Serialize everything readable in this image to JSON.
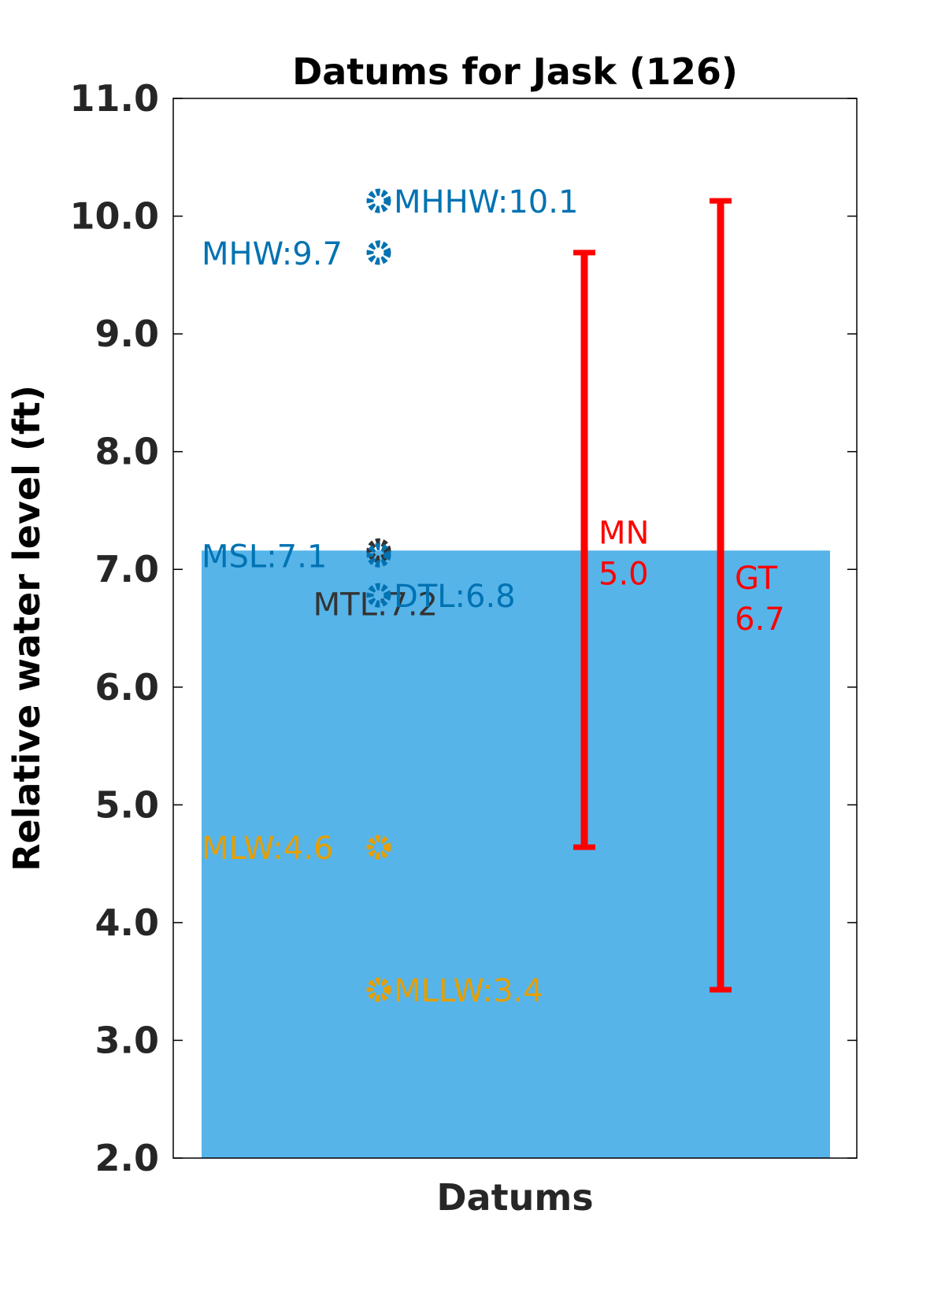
{
  "chart_data": {
    "type": "scatter",
    "title": "Datums for Jask (126)",
    "xlabel": "Datums",
    "ylabel": "Relative water level (ft)",
    "ylim": [
      2.0,
      11.0
    ],
    "yticks": [
      "2.0",
      "3.0",
      "4.0",
      "5.0",
      "6.0",
      "7.0",
      "8.0",
      "9.0",
      "10.0",
      "11.0"
    ],
    "grid": false,
    "fill_level": 7.16,
    "colors": {
      "fill": "#56b4e9",
      "high": "#0072b2",
      "mtl": "#333333",
      "low": "#e69f00",
      "range": "#ff0000",
      "axis": "#000000",
      "tick_text": "#262626"
    },
    "points": [
      {
        "name": "MHHW",
        "value": 10.13,
        "label": "MHHW:10.1",
        "group": "high",
        "label_side": "right"
      },
      {
        "name": "MHW",
        "value": 9.69,
        "label": "MHW:9.7",
        "group": "high",
        "label_side": "left"
      },
      {
        "name": "MTL",
        "value": 7.16,
        "label": "MTL:7.2",
        "group": "mtl",
        "label_side": "below-left"
      },
      {
        "name": "MSL",
        "value": 7.12,
        "label": "MSL:7.1",
        "group": "high",
        "label_side": "left"
      },
      {
        "name": "DTL",
        "value": 6.78,
        "label": "DTL:6.8",
        "group": "high",
        "label_side": "right"
      },
      {
        "name": "MLW",
        "value": 4.64,
        "label": "MLW:4.6",
        "group": "low",
        "label_side": "left"
      },
      {
        "name": "MLLW",
        "value": 3.43,
        "label": "MLLW:3.4",
        "group": "low",
        "label_side": "right"
      }
    ],
    "ranges": [
      {
        "name": "MN",
        "label": "MN",
        "value_label": "5.0",
        "low": 4.64,
        "high": 9.69
      },
      {
        "name": "GT",
        "label": "GT",
        "value_label": "6.7",
        "low": 3.43,
        "high": 10.13
      }
    ]
  }
}
